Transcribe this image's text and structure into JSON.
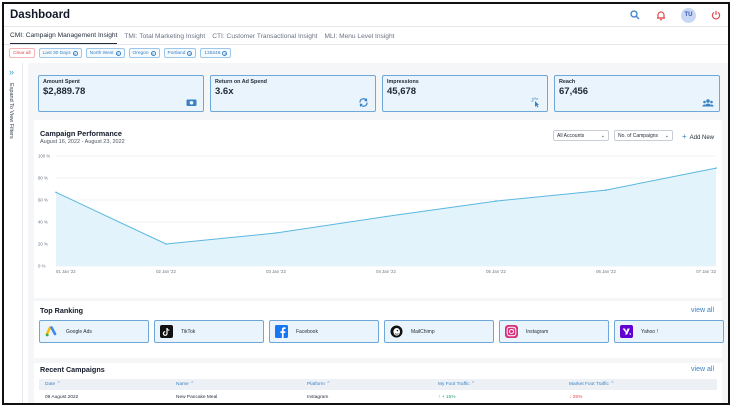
{
  "header": {
    "title": "Dashboard",
    "avatar_initials": "TU"
  },
  "tabs": [
    {
      "label": "CMI: Campaign Management Insight",
      "active": true
    },
    {
      "label": "TMI: Total Marketing Insight",
      "active": false
    },
    {
      "label": "CTI: Customer Transactional Insight",
      "active": false
    },
    {
      "label": "MLI: Menu Level Insight",
      "active": false
    }
  ],
  "filters": {
    "clear_label": "Clear all",
    "chips": [
      "Last 30 Days",
      "North West",
      "Oregon",
      "Portland",
      "135246"
    ]
  },
  "side": {
    "expand_label": "Expand To View Filters"
  },
  "kpis": [
    {
      "label": "Amount Spent",
      "value": "$2,889.78",
      "icon": "money-icon"
    },
    {
      "label": "Return on Ad Spend",
      "value": "3.6x",
      "icon": "refresh-icon"
    },
    {
      "label": "Impressions",
      "value": "45,678",
      "icon": "click-icon"
    },
    {
      "label": "Reach",
      "value": "67,456",
      "icon": "users-icon"
    }
  ],
  "performance": {
    "title": "Campaign Performance",
    "date_range": "August 16, 2022 - August 23, 2022",
    "accounts_select": "All Accounts",
    "campaigns_select": "No. of Campaigns",
    "add_new_label": "Add New"
  },
  "chart_data": {
    "type": "area",
    "x": [
      "01 Jan '22",
      "02 Jan '22",
      "03 Jan '22",
      "04 Jan '22",
      "05 Jan '22",
      "06 Jan '22",
      "07 Jan '22"
    ],
    "values": [
      67,
      20,
      30,
      45,
      59,
      69,
      89
    ],
    "y_ticks": [
      "0 %",
      "20 %",
      "40 %",
      "60 %",
      "80 %",
      "100 %"
    ],
    "ylim": [
      0,
      100
    ],
    "grid": true,
    "color": "#5ab8e0"
  },
  "ranking": {
    "title": "Top Ranking",
    "view_all": "view all",
    "platforms": [
      {
        "name": "Google Ads",
        "icon": "google-ads-icon"
      },
      {
        "name": "TikTok",
        "icon": "tiktok-icon"
      },
      {
        "name": "Facebook",
        "icon": "facebook-icon"
      },
      {
        "name": "MailChimp",
        "icon": "mailchimp-icon"
      },
      {
        "name": "Instagram",
        "icon": "instagram-icon"
      },
      {
        "name": "Yahoo !",
        "icon": "yahoo-icon"
      }
    ]
  },
  "recent": {
    "title": "Recent Campaigns",
    "view_all": "view all",
    "columns": [
      "Date",
      "Name",
      "Platform",
      "My Foot Traffic",
      "Market Foot Traffic"
    ],
    "rows": [
      {
        "date": "09 August 2022",
        "name": "New Pancake Meal",
        "platform": "Instagram",
        "my_traffic": "+ 15%",
        "market_traffic": "25%"
      }
    ]
  },
  "colors": {
    "accent": "#3b82c4",
    "card_bg": "#eaf4fc",
    "card_border": "#6fa8d8",
    "danger": "#e5484d",
    "success": "#22a06b"
  }
}
